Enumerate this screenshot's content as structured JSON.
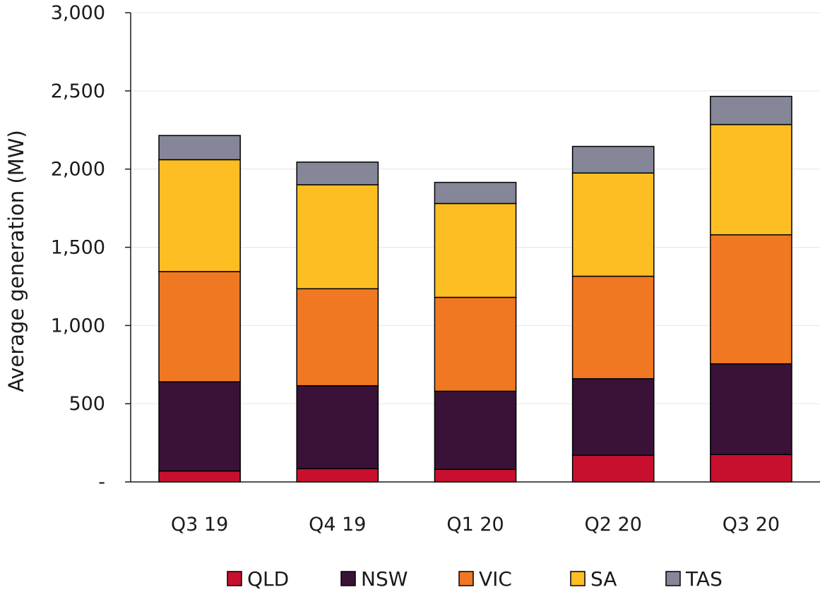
{
  "chart_data": {
    "type": "bar",
    "stacked": true,
    "categories": [
      "Q3 19",
      "Q4 19",
      "Q1 20",
      "Q2 20",
      "Q3 20"
    ],
    "series": [
      {
        "name": "QLD",
        "color": "#C8102E",
        "values": [
          70,
          85,
          80,
          170,
          175
        ]
      },
      {
        "name": "NSW",
        "color": "#3A1238",
        "values": [
          570,
          530,
          500,
          490,
          580
        ]
      },
      {
        "name": "VIC",
        "color": "#F07822",
        "values": [
          705,
          620,
          600,
          655,
          825
        ]
      },
      {
        "name": "SA",
        "color": "#FDBE23",
        "values": [
          715,
          665,
          600,
          660,
          705
        ]
      },
      {
        "name": "TAS",
        "color": "#868699",
        "values": [
          155,
          145,
          135,
          170,
          180
        ]
      }
    ],
    "title": "",
    "xlabel": "",
    "ylabel": "Average generation (MW)",
    "ylim": [
      0,
      3000
    ],
    "yticks": [
      0,
      500,
      1000,
      1500,
      2000,
      2500,
      3000
    ],
    "ytick_labels": [
      "-",
      "500",
      "1,000",
      "1,500",
      "2,000",
      "2,500",
      "3,000"
    ],
    "grid": true,
    "legend": "bottom"
  }
}
